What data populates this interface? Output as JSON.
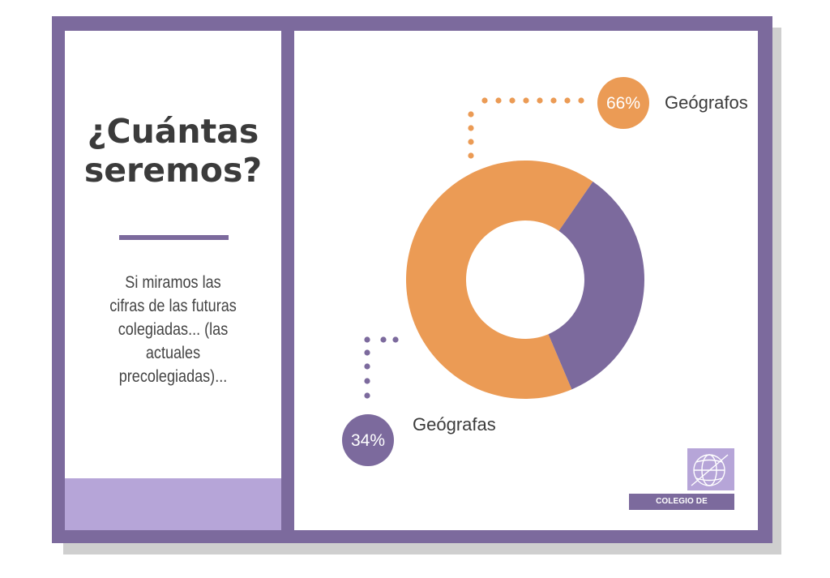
{
  "left": {
    "title_line1": "¿Cuántas",
    "title_line2": "seremos?",
    "body": "Si miramos las cifras de las futuras colegiadas... (las actuales precolegiadas)..."
  },
  "logo": {
    "text": "COLEGIO DE GEÓGRAFOS",
    "icon": "globe-icon"
  },
  "colors": {
    "frame": "#7c6a9d",
    "accent_light": "#b6a5d8",
    "orange": "#eb9b55",
    "purple": "#7c6a9d",
    "title_text": "#3b3b3b"
  },
  "chart_data": {
    "type": "pie",
    "variant": "donut",
    "title": "",
    "slices": [
      {
        "label": "Geógrafos",
        "value": 66,
        "display": "66%",
        "color": "#eb9b55"
      },
      {
        "label": "Geógrafas",
        "value": 34,
        "display": "34%",
        "color": "#7c6a9d"
      }
    ],
    "legend": "callouts"
  }
}
